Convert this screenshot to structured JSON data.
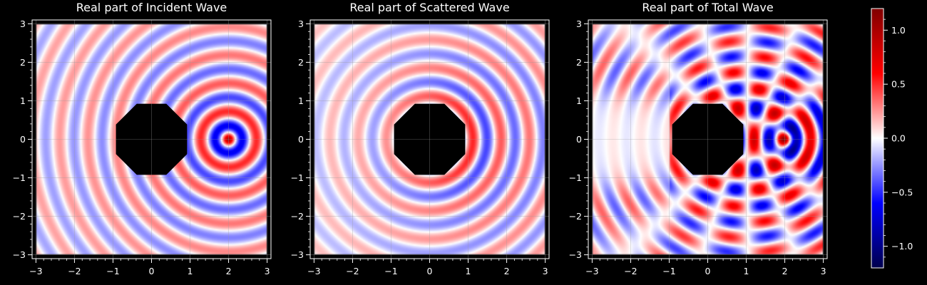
{
  "chart_data": {
    "type": "heatmap",
    "colorbar": {
      "colormap": "seismic",
      "vmin": -1.2,
      "vmax": 1.2,
      "ticks": [
        -1.0,
        -0.5,
        0.0,
        0.5,
        1.0
      ],
      "tick_labels": [
        "−1.0",
        "−0.5",
        "0.0",
        "0.5",
        "1.0"
      ]
    },
    "source_point": [
      2,
      0
    ],
    "obstacle": {
      "shape": "octagon",
      "center": [
        0,
        0
      ],
      "radius": 1
    },
    "grid": true,
    "panels": [
      {
        "title": "Real part of Incident Wave",
        "field": "incident",
        "xlim": [
          -3.1,
          3.1
        ],
        "ylim": [
          -3.1,
          3.1
        ],
        "xticks": [
          -3,
          -2,
          -1,
          0,
          1,
          2,
          3
        ],
        "xtick_labels": [
          "−3",
          "−2",
          "−1",
          "0",
          "1",
          "2",
          "3"
        ],
        "yticks": [
          -3,
          -2,
          -1,
          0,
          1,
          2,
          3
        ],
        "ytick_labels": [
          "−3",
          "−2",
          "−1",
          "0",
          "1",
          "2",
          "3"
        ]
      },
      {
        "title": "Real part of Scattered Wave",
        "field": "scattered",
        "xlim": [
          -3.1,
          3.1
        ],
        "ylim": [
          -3.1,
          3.1
        ],
        "xticks": [
          -3,
          -2,
          -1,
          0,
          1,
          2,
          3
        ],
        "xtick_labels": [
          "−3",
          "−2",
          "−1",
          "0",
          "1",
          "2",
          "3"
        ],
        "yticks": [
          -3,
          -2,
          -1,
          0,
          1,
          2,
          3
        ],
        "ytick_labels": [
          "−3",
          "−2",
          "−1",
          "0",
          "1",
          "2",
          "3"
        ]
      },
      {
        "title": "Real part of Total Wave",
        "field": "total",
        "xlim": [
          -3.1,
          3.1
        ],
        "ylim": [
          -3.1,
          3.1
        ],
        "xticks": [
          -3,
          -2,
          -1,
          0,
          1,
          2,
          3
        ],
        "xtick_labels": [
          "−3",
          "−2",
          "−1",
          "0",
          "1",
          "2",
          "3"
        ],
        "yticks": [
          -3,
          -2,
          -1,
          0,
          1,
          2,
          3
        ],
        "ytick_labels": [
          "−3",
          "−2",
          "−1",
          "0",
          "1",
          "2",
          "3"
        ]
      }
    ]
  },
  "colors": {
    "background": "#000000",
    "text": "#ffffff",
    "obstacle": "#000000",
    "grid": "#9a9a9a"
  }
}
